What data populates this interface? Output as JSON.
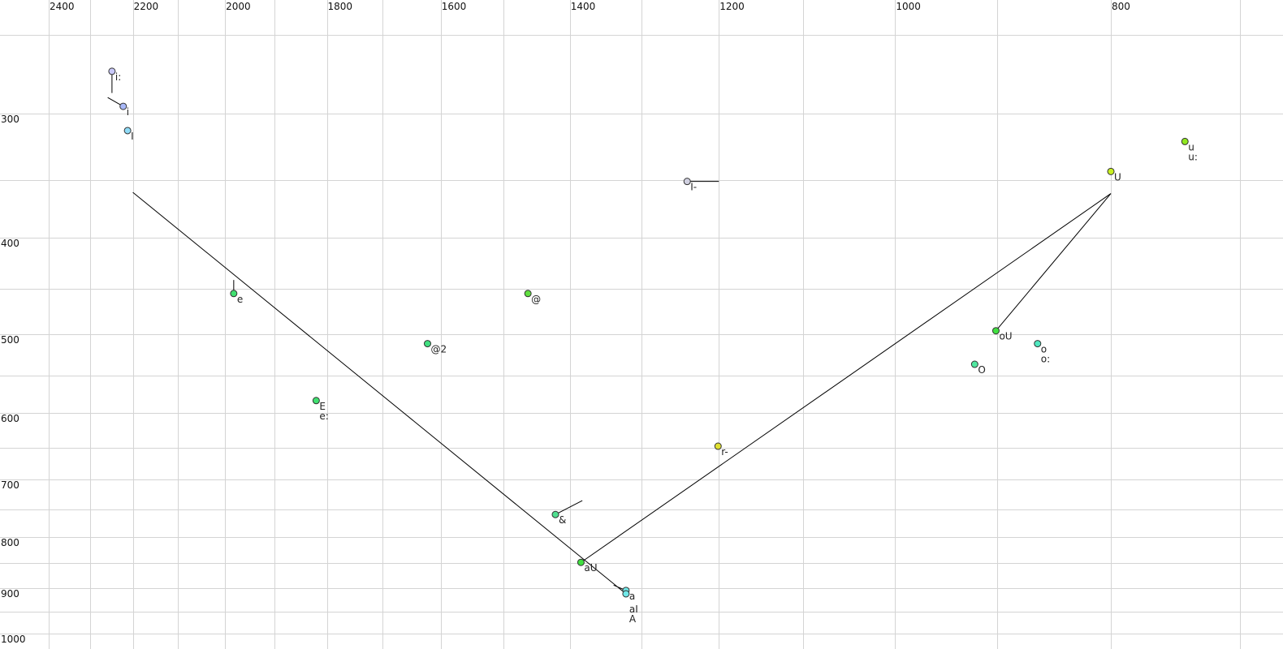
{
  "chart_data": {
    "type": "scatter",
    "title": "",
    "xlabel": "",
    "ylabel": "",
    "x_scale": "log",
    "y_scale": "log",
    "x_reversed": true,
    "xlim": [
      2400,
      700
    ],
    "ylim": [
      250,
      1000
    ],
    "grid": true,
    "x_ticks": [
      2400,
      2200,
      2000,
      1800,
      1600,
      1400,
      1200,
      1000,
      800
    ],
    "x_gridlines": [
      2400,
      2300,
      2200,
      2100,
      2000,
      1900,
      1800,
      1700,
      1600,
      1500,
      1400,
      1300,
      1200,
      1100,
      1000,
      900,
      800,
      700
    ],
    "y_ticks": [
      300,
      400,
      500,
      600,
      700,
      800,
      900,
      1000
    ],
    "y_gridlines": [
      250,
      300,
      350,
      400,
      450,
      500,
      550,
      600,
      650,
      700,
      750,
      800,
      850,
      900,
      950,
      1000
    ],
    "points": [
      {
        "label": "i:",
        "f2": 2248,
        "f1": 272,
        "color": "#c8c8f8",
        "to": [
          2248,
          286
        ]
      },
      {
        "label": "i",
        "f2": 2222,
        "f1": 295,
        "color": "#a8b8f8",
        "to": [
          2258,
          289
        ]
      },
      {
        "label": "I",
        "f2": 2212,
        "f1": 312,
        "color": "#90dcf8"
      },
      {
        "label": "e",
        "f2": 1982,
        "f1": 455,
        "color": "#40e070",
        "to": [
          1982,
          441
        ]
      },
      {
        "label": "E",
        "f2": 1820,
        "f1": 583,
        "color": "#40e070"
      },
      {
        "label": "e:",
        "f2": 1820,
        "f1": 583,
        "color": "#40e070"
      },
      {
        "label": "@2",
        "f2": 1622,
        "f1": 511,
        "color": "#40e080"
      },
      {
        "label": "@",
        "f2": 1462,
        "f1": 455,
        "color": "#60e040"
      },
      {
        "label": "&",
        "f2": 1421,
        "f1": 759,
        "color": "#50e090",
        "to": [
          1382,
          735
        ]
      },
      {
        "label": "aU",
        "f2": 1384,
        "f1": 848,
        "color": "#40e040",
        "to": [
          800,
          361
        ]
      },
      {
        "label": "a",
        "f2": 1321,
        "f1": 905,
        "color": "#70e8e8",
        "to": [
          1338,
          894
        ]
      },
      {
        "label": "aI",
        "f2": 1321,
        "f1": 912,
        "color": "#70e8e8",
        "to": [
          2200,
          360
        ]
      },
      {
        "label": "A",
        "f2": 1321,
        "f1": 912,
        "color": "#70e8e8"
      },
      {
        "label": "I-",
        "f2": 1240,
        "f1": 351,
        "color": "#d0d0e0",
        "to": [
          1200,
          351
        ]
      },
      {
        "label": "r-",
        "f2": 1201,
        "f1": 648,
        "color": "#e0e030"
      },
      {
        "label": "U",
        "f2": 800,
        "f1": 343,
        "color": "#c8f020"
      },
      {
        "label": "u",
        "f2": 741,
        "f1": 320,
        "color": "#90e820"
      },
      {
        "label": "u:",
        "f2": 741,
        "f1": 320,
        "color": "#90e820"
      },
      {
        "label": "oU",
        "f2": 901,
        "f1": 496,
        "color": "#40e040",
        "to": [
          800,
          361
        ]
      },
      {
        "label": "O",
        "f2": 921,
        "f1": 536,
        "color": "#50e8a0"
      },
      {
        "label": "o",
        "f2": 863,
        "f1": 511,
        "color": "#50e8c0"
      },
      {
        "label": "o:",
        "f2": 863,
        "f1": 511,
        "color": "#50e8c0"
      }
    ]
  }
}
